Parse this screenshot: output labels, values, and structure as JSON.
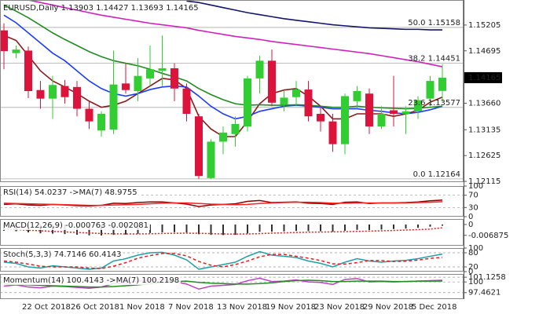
{
  "chart_data": [
    {
      "type": "candlestick",
      "title": "EURUSD,Daily 1.13903 1.14427 1.13693 1.14165",
      "categories": [
        null,
        null,
        "22 Oct 2018",
        null,
        null,
        null,
        "26 Oct 2018",
        null,
        null,
        null,
        "1 Nov 2018",
        null,
        null,
        null,
        "7 Nov 2018",
        null,
        null,
        null,
        "13 Nov 2018",
        null,
        null,
        null,
        "19 Nov 2018",
        null,
        null,
        null,
        "23 Nov 2018",
        null,
        null,
        null,
        "29 Nov 2018",
        null,
        null,
        null,
        "5 Dec 2018",
        null,
        null
      ],
      "open": [
        1.151,
        1.1465,
        1.147,
        1.1392,
        1.1375,
        1.14,
        1.1398,
        1.1355,
        1.1312,
        1.1314,
        1.1405,
        1.139,
        1.1415,
        1.143,
        1.1435,
        1.1395,
        1.134,
        1.1218,
        1.129,
        1.1305,
        1.132,
        1.1415,
        1.145,
        1.1363,
        1.1378,
        1.1393,
        1.1345,
        1.133,
        1.1285,
        1.137,
        1.1385,
        1.132,
        1.1352,
        1.1345,
        1.135,
        1.1375,
        1.13903
      ],
      "high": [
        1.1524,
        1.148,
        1.1478,
        1.141,
        1.142,
        1.1412,
        1.141,
        1.137,
        1.135,
        1.147,
        1.1445,
        1.1455,
        1.148,
        1.15,
        1.1445,
        1.1405,
        1.1345,
        1.1295,
        1.132,
        1.134,
        1.142,
        1.146,
        1.1472,
        1.139,
        1.141,
        1.141,
        1.136,
        1.1345,
        1.1385,
        1.14,
        1.1395,
        1.136,
        1.142,
        1.136,
        1.138,
        1.142,
        1.14427
      ],
      "low": [
        1.1433,
        1.1455,
        1.1376,
        1.1355,
        1.1335,
        1.1365,
        1.134,
        1.1315,
        1.13,
        1.1305,
        1.1385,
        1.137,
        1.14,
        1.14,
        1.137,
        1.133,
        1.1216,
        1.1216,
        1.1265,
        1.128,
        1.131,
        1.1385,
        1.136,
        1.135,
        1.136,
        1.133,
        1.131,
        1.127,
        1.1265,
        1.1355,
        1.1305,
        1.1315,
        1.132,
        1.1305,
        1.1335,
        1.136,
        1.13693
      ],
      "close": [
        1.1469,
        1.1472,
        1.139,
        1.1375,
        1.1402,
        1.1378,
        1.1355,
        1.133,
        1.1345,
        1.1403,
        1.1392,
        1.142,
        1.1433,
        1.1435,
        1.1395,
        1.1345,
        1.1222,
        1.129,
        1.1308,
        1.1325,
        1.1415,
        1.145,
        1.1367,
        1.1377,
        1.1393,
        1.134,
        1.133,
        1.1285,
        1.138,
        1.139,
        1.132,
        1.1345,
        1.1345,
        1.135,
        1.1372,
        1.141,
        1.14165
      ],
      "up_color": "#32cd32",
      "down_color": "#dc143c",
      "overlays": [
        {
          "color": "#8b1a1a",
          "values": [
            1.15,
            1.149,
            1.146,
            1.143,
            1.141,
            1.1398,
            1.1385,
            1.137,
            1.1358,
            1.1362,
            1.137,
            1.1385,
            1.14,
            1.1415,
            1.1412,
            1.1395,
            1.134,
            1.1315,
            1.13,
            1.13,
            1.133,
            1.1365,
            1.1385,
            1.1392,
            1.1395,
            1.138,
            1.136,
            1.1335,
            1.1335,
            1.1345,
            1.1345,
            1.1345,
            1.134,
            1.1345,
            1.1352,
            1.1368,
            1.1378
          ]
        },
        {
          "color": "#1e3cff",
          "values": [
            1.154,
            1.1525,
            1.1505,
            1.1485,
            1.1465,
            1.145,
            1.143,
            1.141,
            1.1395,
            1.1385,
            1.138,
            1.1385,
            1.1393,
            1.1398,
            1.14,
            1.1398,
            1.138,
            1.136,
            1.1345,
            1.1335,
            1.134,
            1.135,
            1.1355,
            1.136,
            1.1362,
            1.136,
            1.1358,
            1.1355,
            1.1355,
            1.1355,
            1.1352,
            1.135,
            1.1347,
            1.1345,
            1.1348,
            1.1353,
            1.136
          ]
        },
        {
          "color": "#228b22",
          "values": [
            1.156,
            1.1548,
            1.1535,
            1.152,
            1.1505,
            1.1492,
            1.148,
            1.1468,
            1.1458,
            1.145,
            1.1445,
            1.144,
            1.1433,
            1.1425,
            1.1418,
            1.141,
            1.1395,
            1.1383,
            1.1373,
            1.1365,
            1.1362,
            1.1363,
            1.1362,
            1.1362,
            1.1363,
            1.1362,
            1.136,
            1.1358,
            1.1358,
            1.136,
            1.1358,
            1.1357,
            1.1356,
            1.1355,
            1.1356,
            1.1358,
            1.136
          ]
        },
        {
          "color": "#d020c0",
          "values": [
            1.158,
            1.1575,
            1.157,
            1.1565,
            1.156,
            1.1555,
            1.155,
            1.1545,
            1.154,
            1.1536,
            1.1532,
            1.1528,
            1.1524,
            1.1521,
            1.1518,
            1.1515,
            1.151,
            1.1506,
            1.1502,
            1.1498,
            1.1495,
            1.1492,
            1.1488,
            1.1485,
            1.1482,
            1.1479,
            1.1476,
            1.1473,
            1.147,
            1.1467,
            1.1464,
            1.146,
            1.1456,
            1.1452,
            1.1448,
            1.1443,
            1.1438
          ]
        },
        {
          "color": "#14146e",
          "values": [
            null,
            null,
            null,
            null,
            null,
            null,
            null,
            null,
            null,
            null,
            null,
            null,
            null,
            null,
            null,
            1.1568,
            1.1565,
            1.156,
            1.1555,
            1.155,
            1.1545,
            1.1541,
            1.1537,
            1.1533,
            1.153,
            1.1527,
            1.1524,
            1.1521,
            1.1519,
            1.1517,
            1.1515,
            1.1514,
            1.1513,
            1.1512,
            1.1512,
            1.1511,
            1.1511
          ]
        }
      ],
      "levels": [
        {
          "value": 1.15158,
          "label": "50.0 1.15158"
        },
        {
          "value": 1.14451,
          "label": "38.2 1.14451"
        },
        {
          "value": 1.13577,
          "label": "23.6 1.13577"
        },
        {
          "value": 1.12164,
          "label": "0.0 1.12164"
        }
      ],
      "last_price": 1.14165,
      "ylim": [
        1.121,
        1.157
      ],
      "yticks": [
        1.15205,
        1.14695,
        {
          "value": 1.1366,
          "label": "1.13660"
        },
        1.13135,
        1.12625,
        1.12115
      ]
    },
    {
      "type": "line",
      "title": "RSI(14) 54.0237 ->MA(7) 48.9755",
      "ylim": [
        0,
        100
      ],
      "yticks": [
        100,
        70,
        30,
        0
      ],
      "grid": true,
      "series": [
        {
          "color": "#8b0000",
          "style": "solid",
          "values": [
            40,
            42,
            38,
            37,
            40,
            38,
            36,
            35,
            37,
            44,
            43,
            46,
            48,
            48,
            45,
            41,
            33,
            38,
            40,
            42,
            50,
            53,
            46,
            47,
            48,
            44,
            43,
            40,
            47,
            48,
            43,
            45,
            45,
            46,
            48,
            52,
            54.0237
          ]
        },
        {
          "color": "#ff2020",
          "style": "solid",
          "values": [
            44,
            43,
            42,
            41,
            40,
            39,
            38,
            37,
            37,
            38,
            39,
            40,
            42,
            44,
            45,
            45,
            43,
            41,
            40,
            39,
            40,
            43,
            45,
            46,
            47,
            47,
            46,
            44,
            44,
            45,
            45,
            45,
            45,
            45,
            46,
            47,
            48.9755
          ]
        }
      ]
    },
    {
      "type": "line",
      "title": "MACD(12,26,9) -0.000763 -0.002081",
      "ylim": [
        -0.0135,
        0.0035
      ],
      "yticks": [
        0,
        -0.006875
      ],
      "grid": false,
      "series": [
        {
          "color": "#303030",
          "style": "bars",
          "values": [
            -0.004,
            -0.0043,
            -0.005,
            -0.0056,
            -0.0058,
            -0.0061,
            -0.0065,
            -0.0069,
            -0.007,
            -0.0066,
            -0.0064,
            -0.0059,
            -0.0054,
            -0.005,
            -0.0049,
            -0.0051,
            -0.0062,
            -0.0066,
            -0.0067,
            -0.0066,
            -0.0057,
            -0.0047,
            -0.0046,
            -0.0044,
            -0.0041,
            -0.0042,
            -0.0043,
            -0.0046,
            -0.004,
            -0.0034,
            -0.0035,
            -0.0032,
            -0.0029,
            -0.0026,
            -0.0021,
            -0.0014,
            -0.000763
          ]
        },
        {
          "color": "#e02020",
          "style": "dotted",
          "values": [
            -0.003,
            -0.0032,
            -0.0036,
            -0.004,
            -0.0044,
            -0.0047,
            -0.0051,
            -0.0054,
            -0.0057,
            -0.0059,
            -0.006,
            -0.006,
            -0.0059,
            -0.0057,
            -0.0056,
            -0.0055,
            -0.0056,
            -0.0058,
            -0.006,
            -0.0061,
            -0.006,
            -0.0058,
            -0.0055,
            -0.0053,
            -0.0051,
            -0.0049,
            -0.0048,
            -0.0047,
            -0.0046,
            -0.0044,
            -0.0042,
            -0.004,
            -0.0038,
            -0.0035,
            -0.0033,
            -0.0029,
            -0.002081
          ]
        }
      ]
    },
    {
      "type": "line",
      "title": "Stoch(5,3,3) 74.7146 60.4143",
      "ylim": [
        0,
        100
      ],
      "yticks": [
        100,
        80,
        20,
        0
      ],
      "grid": true,
      "series": [
        {
          "color": "#20a0a8",
          "style": "solid",
          "values": [
            40,
            35,
            20,
            15,
            25,
            20,
            15,
            10,
            15,
            45,
            55,
            70,
            80,
            82,
            70,
            50,
            10,
            20,
            30,
            40,
            65,
            85,
            70,
            65,
            60,
            45,
            35,
            20,
            40,
            55,
            45,
            40,
            45,
            48,
            55,
            65,
            74.7146
          ]
        },
        {
          "color": "#e02020",
          "style": "dashed",
          "values": [
            45,
            40,
            32,
            23,
            20,
            20,
            20,
            15,
            13,
            23,
            38,
            57,
            68,
            77,
            77,
            67,
            43,
            27,
            20,
            30,
            45,
            63,
            73,
            73,
            65,
            57,
            47,
            33,
            32,
            38,
            47,
            47,
            43,
            44,
            49,
            56,
            60.4143
          ]
        }
      ]
    },
    {
      "type": "line",
      "title": "Momentum(14) 100.4143 ->MA(7) 100.2198",
      "ylim": [
        95.92,
        101.9
      ],
      "yticks": [
        101.1258,
        100,
        97.4621
      ],
      "grid": true,
      "series": [
        {
          "color": "#c040c0",
          "style": "solid",
          "values": [
            99.0,
            99.3,
            98.8,
            98.6,
            99.0,
            98.9,
            98.7,
            98.5,
            98.8,
            99.6,
            99.7,
            100.2,
            100.5,
            100.6,
            100.1,
            99.5,
            98.3,
            99.0,
            99.2,
            99.4,
            100.3,
            100.9,
            100.1,
            100.2,
            100.5,
            100.0,
            99.9,
            99.4,
            100.6,
            100.8,
            100.0,
            100.1,
            100.0,
            100.1,
            100.2,
            100.3,
            100.4143
          ]
        },
        {
          "color": "#228b22",
          "style": "solid",
          "values": [
            99.5,
            99.4,
            99.3,
            99.2,
            99.1,
            99.0,
            98.9,
            98.8,
            98.8,
            98.9,
            99.1,
            99.3,
            99.6,
            99.9,
            100.1,
            100.2,
            99.9,
            99.7,
            99.6,
            99.5,
            99.5,
            99.6,
            99.8,
            100.1,
            100.3,
            100.4,
            100.3,
            100.1,
            100.1,
            100.2,
            100.2,
            100.2,
            100.1,
            100.1,
            100.2,
            100.2,
            100.2198
          ]
        }
      ]
    }
  ]
}
